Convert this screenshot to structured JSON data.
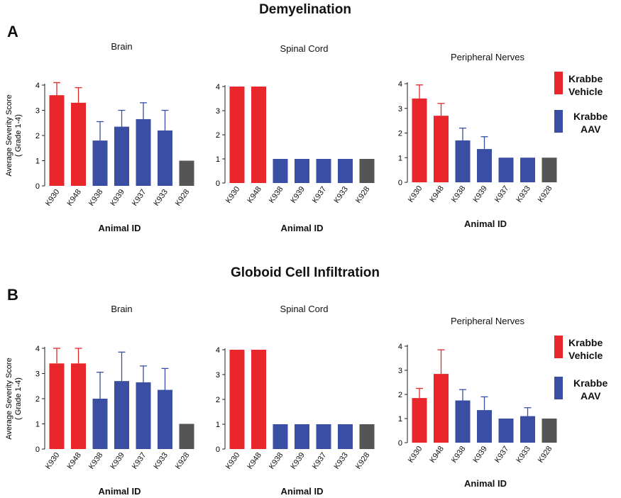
{
  "sections": [
    {
      "letter": "A",
      "title": "Demyelination"
    },
    {
      "letter": "B",
      "title": "Globoid Cell Infiltration"
    }
  ],
  "legend": [
    {
      "line1": "Krabbe",
      "line2": "Vehicle",
      "color": "#e8262c"
    },
    {
      "line1": "Krabbe",
      "line2": "AAV",
      "color": "#3a4fa3"
    }
  ],
  "ylabel_line1": "Average Severity  Score",
  "ylabel_line2": "( Grade 1-4)",
  "colors": {
    "vehicle": "#e8262c",
    "aav": "#3a4fa3",
    "control": "#555555"
  },
  "chart_data": [
    {
      "type": "bar",
      "section": "A",
      "title": "Brain",
      "xlabel": "Animal ID",
      "ylabel": "Average Severity  Score ( Grade 1-4)",
      "ylim": [
        0,
        4
      ],
      "yticks": [
        "0",
        "1",
        "2",
        "3",
        "4"
      ],
      "categories": [
        "K930",
        "K948",
        "K938",
        "K939",
        "K937",
        "K933",
        "K928"
      ],
      "values": [
        3.6,
        3.3,
        1.8,
        2.35,
        2.65,
        2.2,
        1.0
      ],
      "errors": [
        0.5,
        0.6,
        0.75,
        0.65,
        0.65,
        0.8,
        0
      ],
      "groups": [
        "vehicle",
        "vehicle",
        "aav",
        "aav",
        "aav",
        "aav",
        "control"
      ]
    },
    {
      "type": "bar",
      "section": "A",
      "title": "Spinal Cord",
      "xlabel": "Animal ID",
      "ylim": [
        0,
        4
      ],
      "yticks": [
        "0",
        "1",
        "2",
        "3",
        "4"
      ],
      "categories": [
        "K930",
        "K948",
        "K938",
        "K939",
        "K937",
        "K933",
        "K928"
      ],
      "values": [
        4,
        4,
        1,
        1,
        1,
        1,
        1
      ],
      "errors": [
        0,
        0,
        0,
        0,
        0,
        0,
        0
      ],
      "groups": [
        "vehicle",
        "vehicle",
        "aav",
        "aav",
        "aav",
        "aav",
        "control"
      ]
    },
    {
      "type": "bar",
      "section": "A",
      "title": "Peripheral Nerves",
      "xlabel": "Animal ID",
      "ylim": [
        0,
        4
      ],
      "yticks": [
        "0",
        "1",
        "2",
        "3",
        "4"
      ],
      "categories": [
        "K930",
        "K948",
        "K938",
        "K939",
        "K937",
        "K933",
        "K928"
      ],
      "values": [
        3.4,
        2.7,
        1.7,
        1.35,
        1.0,
        1.0,
        1.0
      ],
      "errors": [
        0.55,
        0.5,
        0.5,
        0.5,
        0,
        0,
        0
      ],
      "groups": [
        "vehicle",
        "vehicle",
        "aav",
        "aav",
        "aav",
        "aav",
        "control"
      ]
    },
    {
      "type": "bar",
      "section": "B",
      "title": "Brain",
      "xlabel": "Animal ID",
      "ylabel": "Average Severity  Score ( Grade 1-4)",
      "ylim": [
        0,
        4
      ],
      "yticks": [
        "0",
        "1",
        "2",
        "3",
        "4"
      ],
      "categories": [
        "K930",
        "K948",
        "K938",
        "K939",
        "K937",
        "K933",
        "K928"
      ],
      "values": [
        3.4,
        3.4,
        2.0,
        2.7,
        2.65,
        2.35,
        1.0
      ],
      "errors": [
        0.6,
        0.6,
        1.05,
        1.15,
        0.65,
        0.85,
        0
      ],
      "groups": [
        "vehicle",
        "vehicle",
        "aav",
        "aav",
        "aav",
        "aav",
        "control"
      ]
    },
    {
      "type": "bar",
      "section": "B",
      "title": "Spinal Cord",
      "xlabel": "Animal ID",
      "ylim": [
        0,
        4
      ],
      "yticks": [
        "0",
        "1",
        "2",
        "3",
        "4"
      ],
      "categories": [
        "K930",
        "K948",
        "K938",
        "K939",
        "K937",
        "K933",
        "K928"
      ],
      "values": [
        4,
        4,
        1,
        1,
        1,
        1,
        1
      ],
      "errors": [
        0,
        0,
        0,
        0,
        0,
        0,
        0
      ],
      "groups": [
        "vehicle",
        "vehicle",
        "aav",
        "aav",
        "aav",
        "aav",
        "control"
      ]
    },
    {
      "type": "bar",
      "section": "B",
      "title": "Peripheral Nerves",
      "xlabel": "Animal ID",
      "ylim": [
        0,
        4
      ],
      "yticks": [
        "0",
        "1",
        "2",
        "3",
        "4"
      ],
      "categories": [
        "K930",
        "K948",
        "K938",
        "K939",
        "K937",
        "K933",
        "K928"
      ],
      "values": [
        1.85,
        2.85,
        1.75,
        1.35,
        1.0,
        1.1,
        1.0
      ],
      "errors": [
        0.4,
        1.0,
        0.45,
        0.55,
        0,
        0.35,
        0
      ],
      "groups": [
        "vehicle",
        "vehicle",
        "aav",
        "aav",
        "aav",
        "aav",
        "control"
      ]
    }
  ]
}
